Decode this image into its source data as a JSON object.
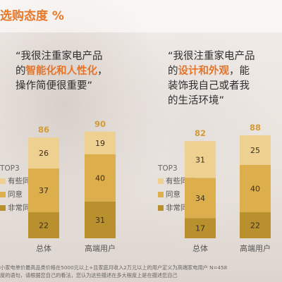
{
  "title": "选购态度 %",
  "quotes": {
    "left": {
      "line1": "“我很注重家电产品",
      "line2_pre": "的",
      "line2_hl": "智能化和人性化",
      "line2_post": "，",
      "line3": "操作简便很重要”"
    },
    "right": {
      "line1": "“我很注重家电产品",
      "line2_pre": "的",
      "line2_hl": "设计和外观",
      "line2_post": "，能",
      "line3": "装饰我自己或者我",
      "line4": "的生活环境”"
    }
  },
  "legend": {
    "header": "TOP3",
    "items": [
      "有些同意",
      "同意",
      "非常同意"
    ]
  },
  "colors": {
    "somewhat": "#eed090",
    "agree": "#dcae4c",
    "strongly": "#b8902e",
    "total_label": "#d49a36",
    "accent": "#e8792a"
  },
  "chart_data": [
    {
      "type": "bar",
      "stacked": true,
      "categories": [
        "总体",
        "高端用户"
      ],
      "series": [
        {
          "name": "非常同意",
          "values": [
            22,
            31
          ]
        },
        {
          "name": "同意",
          "values": [
            37,
            40
          ]
        },
        {
          "name": "有些同意",
          "values": [
            26,
            19
          ]
        }
      ],
      "totals": [
        86,
        90
      ]
    },
    {
      "type": "bar",
      "stacked": true,
      "categories": [
        "总体",
        "高端用户"
      ],
      "series": [
        {
          "name": "非常同意",
          "values": [
            17,
            22
          ]
        },
        {
          "name": "同意",
          "values": [
            34,
            40
          ]
        },
        {
          "name": "有些同意",
          "values": [
            31,
            25
          ]
        }
      ],
      "totals": [
        82,
        88
      ]
    }
  ],
  "footnote": {
    "line1": "小家电单价最高品类价格在5000元以上+且家庭月收入2万元以上的用户定义为高端家电用户 N=458",
    "line2": "度的语句，请根据您自己的看法，您认为这些描述在多大程度上是在描述您自己"
  }
}
